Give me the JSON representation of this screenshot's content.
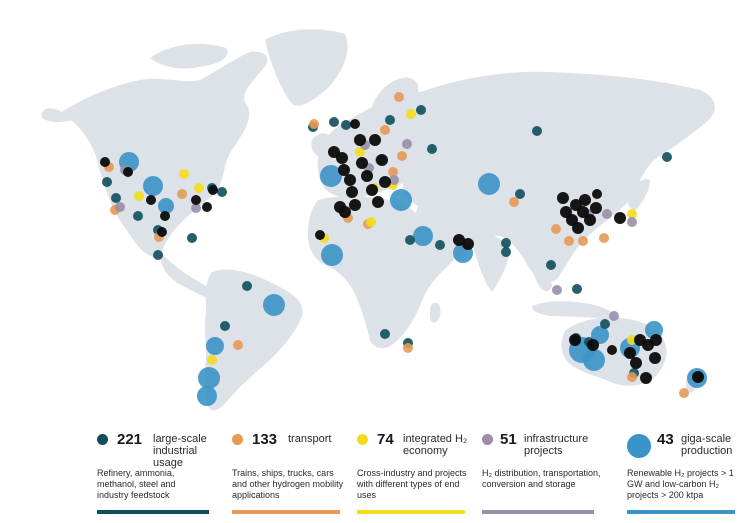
{
  "colors": {
    "land": "#dde1e8",
    "industrial": "#0e4f5c",
    "transport": "#e69a54",
    "integrated": "#f3dc1c",
    "infrastructure": "#9a8ea8",
    "giga": "#3b94c7",
    "black": "#0b0b0b"
  },
  "legend": [
    {
      "key": "industrial",
      "count": "221",
      "label": "large-scale industrial usage",
      "desc": "Refinery, ammonia, methanol, steel and industry feedstock",
      "color": "#0e4f5c",
      "dot_icon": "small-circle-icon"
    },
    {
      "key": "transport",
      "count": "133",
      "label": "transport",
      "desc": "Trains, ships, trucks, cars and other hydrogen mobility applications",
      "color": "#e69a54",
      "dot_icon": "small-circle-icon"
    },
    {
      "key": "integrated",
      "count": "74",
      "label": "integrated H₂ economy",
      "desc": "Cross-industry and projects with different types of end uses",
      "color": "#f3dc1c",
      "dot_icon": "small-circle-icon"
    },
    {
      "key": "infrastructure",
      "count": "51",
      "label": "infrastructure projects",
      "desc": "H₂ distribution, transportation, conversion and storage",
      "color": "#9a8ea8",
      "dot_icon": "small-circle-icon"
    },
    {
      "key": "giga",
      "count": "43",
      "label": "giga-scale production",
      "desc": "Renewable H₂ projects > 1 GW and low-carbon H₂ projects > 200 ktpa",
      "color": "#3b94c7",
      "dot_icon": "large-circle-icon"
    }
  ]
}
